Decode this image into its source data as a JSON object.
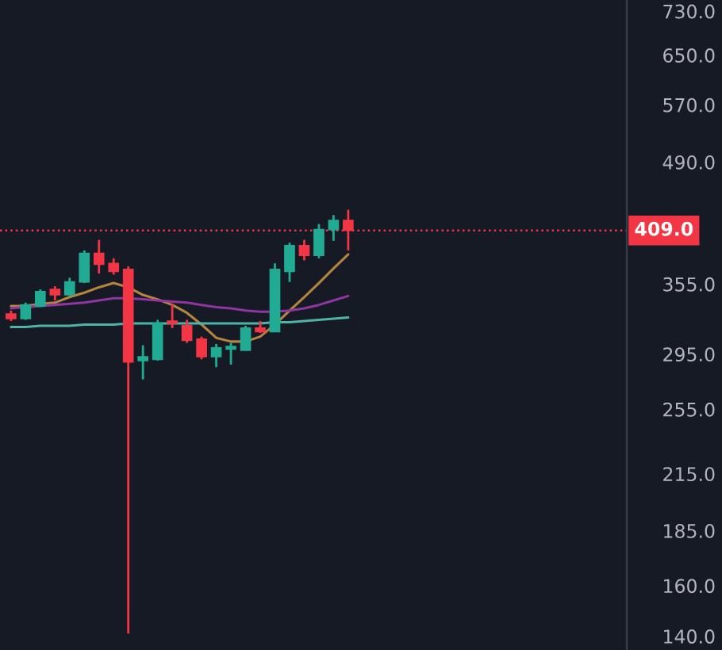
{
  "chart_data": {
    "type": "candlestick",
    "categories": [
      null,
      null,
      null,
      null,
      null,
      null,
      null,
      null,
      null,
      null,
      null,
      null,
      null,
      null,
      null,
      null,
      null,
      null,
      null,
      null,
      null,
      null,
      null,
      null
    ],
    "ohlc": [
      [
        328,
        331,
        322,
        324
      ],
      [
        324,
        338,
        323,
        336
      ],
      [
        335,
        350,
        334,
        348
      ],
      [
        350,
        353,
        340,
        345
      ],
      [
        345,
        361,
        344,
        357
      ],
      [
        357,
        388,
        356,
        385
      ],
      [
        385,
        399,
        365,
        374
      ],
      [
        375,
        380,
        364,
        367
      ],
      [
        369,
        372,
        141,
        289
      ],
      [
        290,
        302,
        276,
        293
      ],
      [
        291,
        323,
        290,
        320
      ],
      [
        322,
        337,
        316,
        320
      ],
      [
        318,
        323,
        304,
        306
      ],
      [
        307,
        309,
        291,
        293
      ],
      [
        293,
        303,
        285,
        300
      ],
      [
        299,
        304,
        287,
        301
      ],
      [
        298,
        318,
        298,
        316
      ],
      [
        316,
        322,
        312,
        313
      ],
      [
        313,
        375,
        313,
        369
      ],
      [
        367,
        396,
        357,
        393
      ],
      [
        393,
        399,
        378,
        383
      ],
      [
        383,
        416,
        380,
        410
      ],
      [
        410,
        426,
        398,
        420
      ],
      [
        420,
        432,
        388,
        409
      ]
    ],
    "colors": [
      "#f23645",
      "#22ab94",
      "#22ab94",
      "#f23645",
      "#22ab94",
      "#22ab94",
      "#f23645",
      "#f23645",
      "#f23645",
      "#22ab94",
      "#22ab94",
      "#f23645",
      "#f23645",
      "#f23645",
      "#22ab94",
      "#22ab94",
      "#22ab94",
      "#f23645",
      "#22ab94",
      "#22ab94",
      "#f23645",
      "#22ab94",
      "#22ab94",
      "#f23645"
    ],
    "series": [
      {
        "type": "line",
        "color": "#b5853f",
        "values": [
          335,
          335,
          337,
          338,
          343,
          347,
          352,
          356,
          352,
          345,
          341,
          336,
          329,
          319,
          308,
          305,
          305,
          309,
          319,
          331,
          343,
          356,
          370,
          384
        ]
      },
      {
        "type": "line",
        "color": "#9036a0",
        "values": [
          333,
          334,
          335,
          336,
          337,
          338,
          340,
          342,
          342,
          341,
          340,
          339,
          338,
          336,
          334,
          333,
          331,
          330,
          330,
          331,
          333,
          336,
          340,
          344
        ]
      },
      {
        "type": "line",
        "color": "#4fb3aa",
        "values": [
          317,
          317,
          318,
          318,
          318,
          319,
          319,
          319,
          320,
          320,
          320,
          320,
          320,
          320,
          320,
          320,
          320,
          320,
          321,
          321,
          322,
          323,
          324,
          325
        ]
      }
    ],
    "log": true,
    "ylim": [
      135,
      752
    ],
    "yticks": [
      {
        "value": 730,
        "label": "730.0"
      },
      {
        "value": 650,
        "label": "650.0"
      },
      {
        "value": 570,
        "label": "570.0"
      },
      {
        "value": 490,
        "label": "490.0"
      },
      {
        "value": 355,
        "label": "355.0"
      },
      {
        "value": 295,
        "label": "295.0"
      },
      {
        "value": 255,
        "label": "255.0"
      },
      {
        "value": 215,
        "label": "215.0"
      },
      {
        "value": 185,
        "label": "185.0"
      },
      {
        "value": 160,
        "label": "160.0"
      },
      {
        "value": 140,
        "label": "140.0"
      }
    ],
    "ref_lines": [
      {
        "axis": "y",
        "value": 409,
        "label": "409.0",
        "color": "#f23645",
        "line_style": "dotted"
      }
    ],
    "tick_labels": "y",
    "grid": false,
    "legend": false
  }
}
